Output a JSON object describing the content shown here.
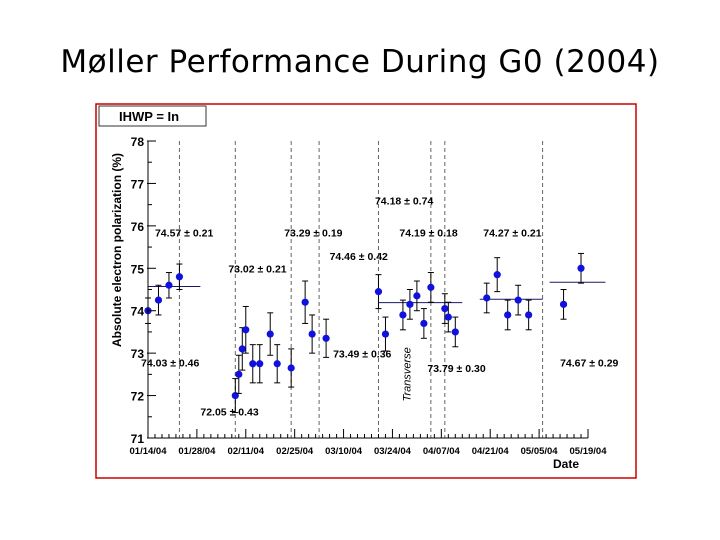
{
  "slide": {
    "title": "Møller Performance During G0 (2004)"
  },
  "chart_data": {
    "type": "scatter",
    "title": "",
    "box_label": "IHWP = In",
    "xlabel": "Date",
    "ylabel": "Absolute electron polarization (%)",
    "ylim": [
      71,
      78
    ],
    "xlim": [
      "2004-01-14",
      "2004-05-19"
    ],
    "yticks": [
      71,
      72,
      73,
      74,
      75,
      76,
      77,
      78
    ],
    "xticks": [
      {
        "date": "2004-01-14",
        "label": "01/14/04"
      },
      {
        "date": "2004-01-28",
        "label": "01/28/04"
      },
      {
        "date": "2004-02-11",
        "label": "02/11/04"
      },
      {
        "date": "2004-02-25",
        "label": "02/25/04"
      },
      {
        "date": "2004-03-10",
        "label": "03/10/04"
      },
      {
        "date": "2004-03-24",
        "label": "03/24/04"
      },
      {
        "date": "2004-04-07",
        "label": "04/07/04"
      },
      {
        "date": "2004-04-21",
        "label": "04/21/04"
      },
      {
        "date": "2004-05-05",
        "label": "05/05/04"
      },
      {
        "date": "2004-05-19",
        "label": "05/19/04"
      }
    ],
    "period_boundaries": [
      "2004-01-14",
      "2004-01-23",
      "2004-02-08",
      "2004-02-24",
      "2004-03-03",
      "2004-03-20",
      "2004-04-04",
      "2004-04-08",
      "2004-05-06"
    ],
    "annotation_vertical": {
      "text": "Transverse",
      "date": "2004-03-28"
    },
    "points": [
      {
        "date": "2004-01-14",
        "y": 74.0,
        "err": 0.3
      },
      {
        "date": "2004-01-17",
        "y": 74.25,
        "err": 0.35
      },
      {
        "date": "2004-01-20",
        "y": 74.6,
        "err": 0.3
      },
      {
        "date": "2004-01-23",
        "y": 74.8,
        "err": 0.3
      },
      {
        "date": "2004-02-08",
        "y": 72.0,
        "err": 0.4
      },
      {
        "date": "2004-02-09",
        "y": 72.5,
        "err": 0.45
      },
      {
        "date": "2004-02-10",
        "y": 73.1,
        "err": 0.5
      },
      {
        "date": "2004-02-11",
        "y": 73.55,
        "err": 0.55
      },
      {
        "date": "2004-02-13",
        "y": 72.75,
        "err": 0.45
      },
      {
        "date": "2004-02-15",
        "y": 72.75,
        "err": 0.45
      },
      {
        "date": "2004-02-18",
        "y": 73.45,
        "err": 0.5
      },
      {
        "date": "2004-02-20",
        "y": 72.75,
        "err": 0.45
      },
      {
        "date": "2004-02-24",
        "y": 72.65,
        "err": 0.45
      },
      {
        "date": "2004-02-28",
        "y": 74.2,
        "err": 0.5
      },
      {
        "date": "2004-03-01",
        "y": 73.45,
        "err": 0.45
      },
      {
        "date": "2004-03-05",
        "y": 73.35,
        "err": 0.45
      },
      {
        "date": "2004-03-20",
        "y": 74.45,
        "err": 0.4
      },
      {
        "date": "2004-03-22",
        "y": 73.45,
        "err": 0.4
      },
      {
        "date": "2004-03-27",
        "y": 73.9,
        "err": 0.35
      },
      {
        "date": "2004-03-29",
        "y": 74.15,
        "err": 0.35
      },
      {
        "date": "2004-03-31",
        "y": 74.35,
        "err": 0.35
      },
      {
        "date": "2004-04-02",
        "y": 73.7,
        "err": 0.35
      },
      {
        "date": "2004-04-04",
        "y": 74.55,
        "err": 0.35
      },
      {
        "date": "2004-04-08",
        "y": 74.05,
        "err": 0.35
      },
      {
        "date": "2004-04-09",
        "y": 73.85,
        "err": 0.35
      },
      {
        "date": "2004-04-11",
        "y": 73.5,
        "err": 0.35
      },
      {
        "date": "2004-04-20",
        "y": 74.3,
        "err": 0.35
      },
      {
        "date": "2004-04-23",
        "y": 74.85,
        "err": 0.4
      },
      {
        "date": "2004-04-26",
        "y": 73.9,
        "err": 0.35
      },
      {
        "date": "2004-04-29",
        "y": 74.25,
        "err": 0.35
      },
      {
        "date": "2004-05-02",
        "y": 73.9,
        "err": 0.35
      },
      {
        "date": "2004-05-12",
        "y": 74.15,
        "err": 0.35
      },
      {
        "date": "2004-05-17",
        "y": 75.0,
        "err": 0.35
      }
    ],
    "averages": [
      {
        "start": "2004-01-14",
        "end": "2004-01-29",
        "y": 74.57,
        "err": 0.21
      },
      {
        "start": "2004-03-20",
        "end": "2004-04-13",
        "y": 74.19,
        "err": 0.18
      },
      {
        "start": "2004-04-18",
        "end": "2004-05-06",
        "y": 74.27,
        "err": 0.21
      },
      {
        "start": "2004-05-08",
        "end": "2004-05-24",
        "y": 74.67,
        "err": 0.29
      }
    ],
    "annotations": [
      {
        "text": "74.57 ± 0.21",
        "date": "2004-01-16",
        "y": 75.75
      },
      {
        "text": "74.03 ± 0.46",
        "date": "2004-01-12",
        "y": 72.68
      },
      {
        "text": "73.02 ± 0.21",
        "date": "2004-02-06",
        "y": 74.9
      },
      {
        "text": "72.05 ± 0.43",
        "date": "2004-01-29",
        "y": 71.53
      },
      {
        "text": "73.29 ± 0.19",
        "date": "2004-02-22",
        "y": 75.75
      },
      {
        "text": "74.46 ± 0.42",
        "date": "2004-03-06",
        "y": 75.2
      },
      {
        "text": "74.18 ± 0.74",
        "date": "2004-03-19",
        "y": 76.5
      },
      {
        "text": "73.49 ± 0.36",
        "date": "2004-03-07",
        "y": 72.9
      },
      {
        "text": "74.19 ± 0.18",
        "date": "2004-03-26",
        "y": 75.75
      },
      {
        "text": "73.79 ± 0.30",
        "date": "2004-04-03",
        "y": 72.55
      },
      {
        "text": "74.27 ± 0.21",
        "date": "2004-04-19",
        "y": 75.75
      },
      {
        "text": "74.67 ± 0.29",
        "date": "2004-05-11",
        "y": 72.68
      }
    ],
    "grid": false,
    "colors": {
      "frame": "#cc0000",
      "marker": "#1111dd",
      "boundary": "#666666"
    }
  }
}
